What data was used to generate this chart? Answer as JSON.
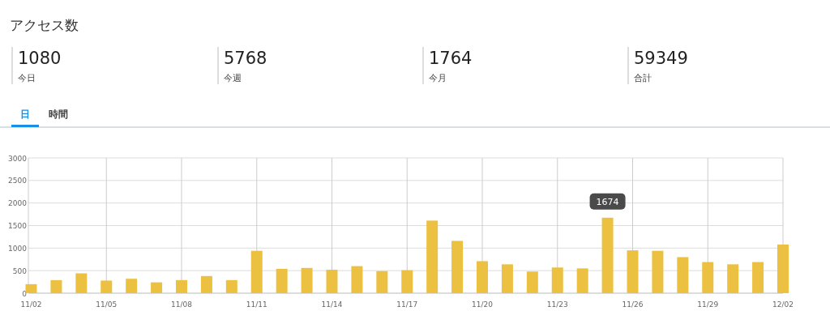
{
  "chart_data": [
    {
      "type": "other",
      "title": "アクセス数",
      "annotations": [
        "1080",
        "今日",
        "5768",
        "今週",
        "1764",
        "今月",
        "59349",
        "合計",
        "日",
        "時間"
      ]
    },
    {
      "type": "bar",
      "color": "#ecc142",
      "categories": [
        "11/02",
        null,
        null,
        "11/05",
        null,
        null,
        "11/08",
        null,
        null,
        "11/11",
        null,
        null,
        "11/14",
        null,
        null,
        "11/17",
        null,
        null,
        "11/20",
        null,
        null,
        "11/23",
        null,
        null,
        "11/26",
        null,
        null,
        "11/29",
        null,
        null,
        "12/02"
      ],
      "values": [
        200,
        290,
        440,
        280,
        320,
        240,
        290,
        380,
        290,
        940,
        540,
        560,
        520,
        600,
        490,
        510,
        1610,
        1160,
        710,
        640,
        480,
        570,
        550,
        1674,
        950,
        940,
        800,
        690,
        640,
        690,
        1080
      ],
      "value_labels": [
        null,
        null,
        null,
        null,
        null,
        null,
        null,
        null,
        null,
        null,
        null,
        null,
        null,
        null,
        null,
        null,
        null,
        null,
        null,
        null,
        null,
        null,
        null,
        "1674",
        null,
        null,
        null,
        null,
        null,
        null,
        null
      ],
      "ylim": [
        0,
        3000
      ],
      "yticks": [
        0,
        500,
        1000,
        1500,
        2000,
        2500,
        3000
      ],
      "grid": true
    }
  ]
}
